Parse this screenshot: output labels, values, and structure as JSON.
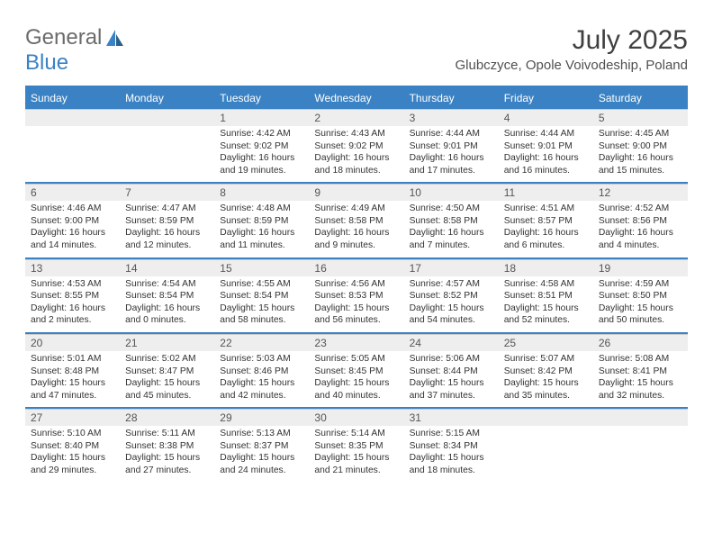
{
  "brand": {
    "part1": "General",
    "part2": "Blue"
  },
  "title": "July 2025",
  "location": "Glubczyce, Opole Voivodeship, Poland",
  "colors": {
    "accent": "#3b82c4",
    "header_text": "#ffffff",
    "daynum_bg": "#eeeeee",
    "body_text": "#333333",
    "title_text": "#404040",
    "logo_gray": "#6b6b6b"
  },
  "dayNames": [
    "Sunday",
    "Monday",
    "Tuesday",
    "Wednesday",
    "Thursday",
    "Friday",
    "Saturday"
  ],
  "weeks": [
    [
      {
        "num": "",
        "sunrise": "",
        "sunset": "",
        "daylight": ""
      },
      {
        "num": "",
        "sunrise": "",
        "sunset": "",
        "daylight": ""
      },
      {
        "num": "1",
        "sunrise": "4:42 AM",
        "sunset": "9:02 PM",
        "daylight": "16 hours and 19 minutes."
      },
      {
        "num": "2",
        "sunrise": "4:43 AM",
        "sunset": "9:02 PM",
        "daylight": "16 hours and 18 minutes."
      },
      {
        "num": "3",
        "sunrise": "4:44 AM",
        "sunset": "9:01 PM",
        "daylight": "16 hours and 17 minutes."
      },
      {
        "num": "4",
        "sunrise": "4:44 AM",
        "sunset": "9:01 PM",
        "daylight": "16 hours and 16 minutes."
      },
      {
        "num": "5",
        "sunrise": "4:45 AM",
        "sunset": "9:00 PM",
        "daylight": "16 hours and 15 minutes."
      }
    ],
    [
      {
        "num": "6",
        "sunrise": "4:46 AM",
        "sunset": "9:00 PM",
        "daylight": "16 hours and 14 minutes."
      },
      {
        "num": "7",
        "sunrise": "4:47 AM",
        "sunset": "8:59 PM",
        "daylight": "16 hours and 12 minutes."
      },
      {
        "num": "8",
        "sunrise": "4:48 AM",
        "sunset": "8:59 PM",
        "daylight": "16 hours and 11 minutes."
      },
      {
        "num": "9",
        "sunrise": "4:49 AM",
        "sunset": "8:58 PM",
        "daylight": "16 hours and 9 minutes."
      },
      {
        "num": "10",
        "sunrise": "4:50 AM",
        "sunset": "8:58 PM",
        "daylight": "16 hours and 7 minutes."
      },
      {
        "num": "11",
        "sunrise": "4:51 AM",
        "sunset": "8:57 PM",
        "daylight": "16 hours and 6 minutes."
      },
      {
        "num": "12",
        "sunrise": "4:52 AM",
        "sunset": "8:56 PM",
        "daylight": "16 hours and 4 minutes."
      }
    ],
    [
      {
        "num": "13",
        "sunrise": "4:53 AM",
        "sunset": "8:55 PM",
        "daylight": "16 hours and 2 minutes."
      },
      {
        "num": "14",
        "sunrise": "4:54 AM",
        "sunset": "8:54 PM",
        "daylight": "16 hours and 0 minutes."
      },
      {
        "num": "15",
        "sunrise": "4:55 AM",
        "sunset": "8:54 PM",
        "daylight": "15 hours and 58 minutes."
      },
      {
        "num": "16",
        "sunrise": "4:56 AM",
        "sunset": "8:53 PM",
        "daylight": "15 hours and 56 minutes."
      },
      {
        "num": "17",
        "sunrise": "4:57 AM",
        "sunset": "8:52 PM",
        "daylight": "15 hours and 54 minutes."
      },
      {
        "num": "18",
        "sunrise": "4:58 AM",
        "sunset": "8:51 PM",
        "daylight": "15 hours and 52 minutes."
      },
      {
        "num": "19",
        "sunrise": "4:59 AM",
        "sunset": "8:50 PM",
        "daylight": "15 hours and 50 minutes."
      }
    ],
    [
      {
        "num": "20",
        "sunrise": "5:01 AM",
        "sunset": "8:48 PM",
        "daylight": "15 hours and 47 minutes."
      },
      {
        "num": "21",
        "sunrise": "5:02 AM",
        "sunset": "8:47 PM",
        "daylight": "15 hours and 45 minutes."
      },
      {
        "num": "22",
        "sunrise": "5:03 AM",
        "sunset": "8:46 PM",
        "daylight": "15 hours and 42 minutes."
      },
      {
        "num": "23",
        "sunrise": "5:05 AM",
        "sunset": "8:45 PM",
        "daylight": "15 hours and 40 minutes."
      },
      {
        "num": "24",
        "sunrise": "5:06 AM",
        "sunset": "8:44 PM",
        "daylight": "15 hours and 37 minutes."
      },
      {
        "num": "25",
        "sunrise": "5:07 AM",
        "sunset": "8:42 PM",
        "daylight": "15 hours and 35 minutes."
      },
      {
        "num": "26",
        "sunrise": "5:08 AM",
        "sunset": "8:41 PM",
        "daylight": "15 hours and 32 minutes."
      }
    ],
    [
      {
        "num": "27",
        "sunrise": "5:10 AM",
        "sunset": "8:40 PM",
        "daylight": "15 hours and 29 minutes."
      },
      {
        "num": "28",
        "sunrise": "5:11 AM",
        "sunset": "8:38 PM",
        "daylight": "15 hours and 27 minutes."
      },
      {
        "num": "29",
        "sunrise": "5:13 AM",
        "sunset": "8:37 PM",
        "daylight": "15 hours and 24 minutes."
      },
      {
        "num": "30",
        "sunrise": "5:14 AM",
        "sunset": "8:35 PM",
        "daylight": "15 hours and 21 minutes."
      },
      {
        "num": "31",
        "sunrise": "5:15 AM",
        "sunset": "8:34 PM",
        "daylight": "15 hours and 18 minutes."
      },
      {
        "num": "",
        "sunrise": "",
        "sunset": "",
        "daylight": ""
      },
      {
        "num": "",
        "sunrise": "",
        "sunset": "",
        "daylight": ""
      }
    ]
  ],
  "labels": {
    "sunrise": "Sunrise:",
    "sunset": "Sunset:",
    "daylight": "Daylight:"
  }
}
